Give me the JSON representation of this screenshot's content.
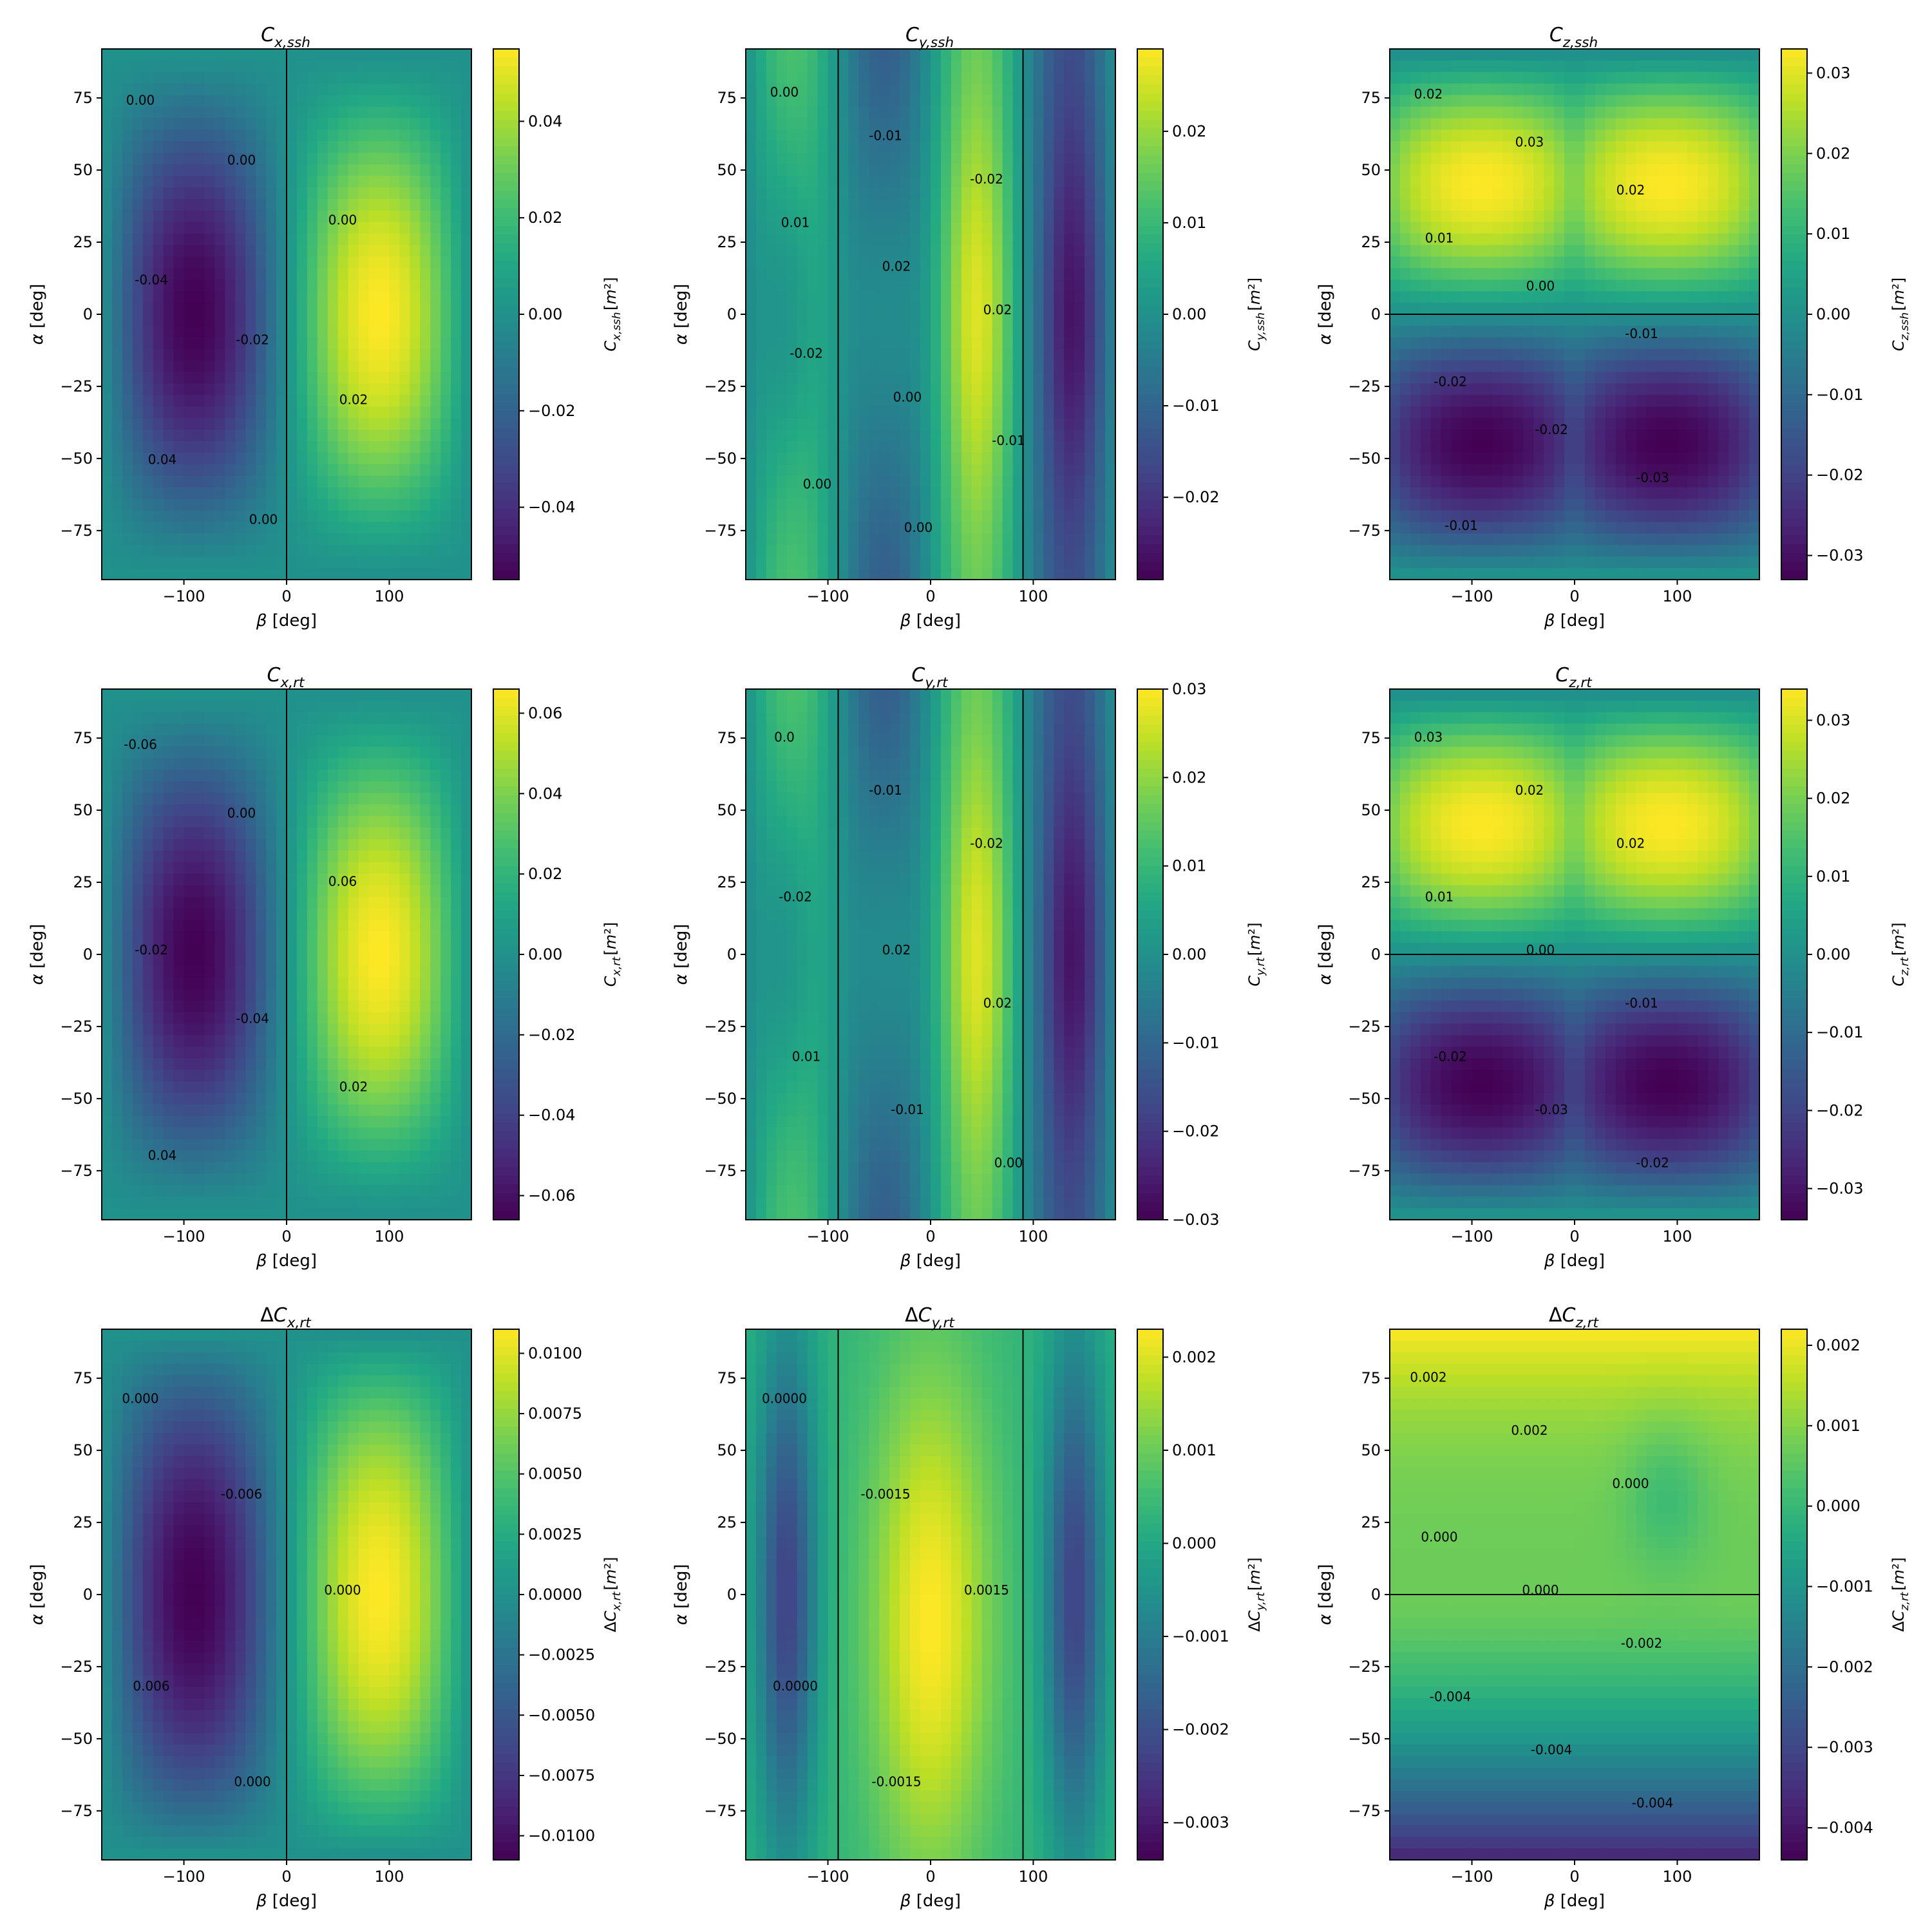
{
  "chart_data": [
    {
      "type": "heatmap",
      "title": "C_{x,ssh}",
      "xlabel": "β [deg]",
      "ylabel": "α [deg]",
      "colorbar_label": "C_{x,ssh}[m²]",
      "xlim": [
        -180,
        180
      ],
      "ylim": [
        -92,
        92
      ],
      "xticks": [
        "-100",
        "0",
        "100"
      ],
      "yticks": [
        "75",
        "50",
        "25",
        "0",
        "-25",
        "-50",
        "-75"
      ],
      "clim": [
        -0.055,
        0.055
      ],
      "colorbar_ticks": [
        "0.04",
        "0.02",
        "0.00",
        "-0.02",
        "-0.04"
      ],
      "pattern": "sin_beta_x",
      "contour_labels": [
        "0.00",
        "0.00",
        "0.00",
        "-0.04",
        "-0.02",
        "0.02",
        "0.04",
        "0.00"
      ]
    },
    {
      "type": "heatmap",
      "title": "C_{y,ssh}",
      "xlabel": "β [deg]",
      "ylabel": "α [deg]",
      "colorbar_label": "C_{y,ssh}[m²]",
      "xlim": [
        -180,
        180
      ],
      "ylim": [
        -92,
        92
      ],
      "xticks": [
        "-100",
        "0",
        "100"
      ],
      "yticks": [
        "75",
        "50",
        "25",
        "0",
        "-25",
        "-50",
        "-75"
      ],
      "clim": [
        -0.029,
        0.029
      ],
      "colorbar_ticks": [
        "0.02",
        "0.01",
        "0.00",
        "-0.01",
        "-0.02"
      ],
      "pattern": "sin_2beta_y",
      "contour_labels": [
        "0.00",
        "-0.01",
        "-0.02",
        "0.01",
        "0.02",
        "0.02",
        "-0.02",
        "0.00",
        "-0.01",
        "0.00",
        "0.00"
      ]
    },
    {
      "type": "heatmap",
      "title": "C_{z,ssh}",
      "xlabel": "β [deg]",
      "ylabel": "α [deg]",
      "colorbar_label": "C_{z,ssh}[m²]",
      "xlim": [
        -180,
        180
      ],
      "ylim": [
        -92,
        92
      ],
      "xticks": [
        "-100",
        "0",
        "100"
      ],
      "yticks": [
        "75",
        "50",
        "25",
        "0",
        "-25",
        "-50",
        "-75"
      ],
      "clim": [
        -0.033,
        0.033
      ],
      "colorbar_ticks": [
        "0.03",
        "0.02",
        "0.01",
        "0.00",
        "-0.01",
        "-0.02",
        "-0.03"
      ],
      "pattern": "sin_2alpha_z",
      "contour_labels": [
        "0.02",
        "0.03",
        "0.02",
        "0.01",
        "0.00",
        "-0.01",
        "-0.02",
        "-0.02",
        "-0.03",
        "-0.01"
      ]
    },
    {
      "type": "heatmap",
      "title": "C_{x,rt}",
      "xlabel": "β [deg]",
      "ylabel": "α [deg]",
      "colorbar_label": "C_{x,rt}[m²]",
      "xlim": [
        -180,
        180
      ],
      "ylim": [
        -92,
        92
      ],
      "xticks": [
        "-100",
        "0",
        "100"
      ],
      "yticks": [
        "75",
        "50",
        "25",
        "0",
        "-25",
        "-50",
        "-75"
      ],
      "clim": [
        -0.066,
        0.066
      ],
      "colorbar_ticks": [
        "0.06",
        "0.04",
        "0.02",
        "0.00",
        "-0.02",
        "-0.04",
        "-0.06"
      ],
      "pattern": "sin_beta_x",
      "contour_labels": [
        "-0.06",
        "0.00",
        "0.06",
        "-0.02",
        "-0.04",
        "0.02",
        "0.04"
      ]
    },
    {
      "type": "heatmap",
      "title": "C_{y,rt}",
      "xlabel": "β [deg]",
      "ylabel": "α [deg]",
      "colorbar_label": "C_{y,rt}[m²]",
      "xlim": [
        -180,
        180
      ],
      "ylim": [
        -92,
        92
      ],
      "xticks": [
        "-100",
        "0",
        "100"
      ],
      "yticks": [
        "75",
        "50",
        "25",
        "0",
        "-25",
        "-50",
        "-75"
      ],
      "clim": [
        -0.03,
        0.03
      ],
      "colorbar_ticks": [
        "0.03",
        "0.02",
        "0.01",
        "0.00",
        "-0.01",
        "-0.02",
        "-0.03"
      ],
      "pattern": "sin_2beta_y",
      "contour_labels": [
        "0.0",
        "-0.01",
        "-0.02",
        "-0.02",
        "0.02",
        "0.02",
        "0.01",
        "-0.01",
        "0.00"
      ]
    },
    {
      "type": "heatmap",
      "title": "C_{z,rt}",
      "xlabel": "β [deg]",
      "ylabel": "α [deg]",
      "colorbar_label": "C_{z,rt}[m²]",
      "xlim": [
        -180,
        180
      ],
      "ylim": [
        -92,
        92
      ],
      "xticks": [
        "-100",
        "0",
        "100"
      ],
      "yticks": [
        "75",
        "50",
        "25",
        "0",
        "-25",
        "-50",
        "-75"
      ],
      "clim": [
        -0.034,
        0.034
      ],
      "colorbar_ticks": [
        "0.03",
        "0.02",
        "0.01",
        "0.00",
        "-0.01",
        "-0.02",
        "-0.03"
      ],
      "pattern": "sin_2alpha_z",
      "contour_labels": [
        "0.03",
        "0.02",
        "0.02",
        "0.01",
        "0.00",
        "-0.01",
        "-0.02",
        "-0.03",
        "-0.02"
      ]
    },
    {
      "type": "heatmap",
      "title": "ΔC_{x,rt}",
      "xlabel": "β [deg]",
      "ylabel": "α [deg]",
      "colorbar_label": "ΔC_{x,rt}[m²]",
      "xlim": [
        -180,
        180
      ],
      "ylim": [
        -92,
        92
      ],
      "xticks": [
        "-100",
        "0",
        "100"
      ],
      "yticks": [
        "75",
        "50",
        "25",
        "0",
        "-25",
        "-50",
        "-75"
      ],
      "clim": [
        -0.011,
        0.011
      ],
      "colorbar_ticks": [
        "0.0100",
        "0.0075",
        "0.0050",
        "0.0025",
        "0.0000",
        "-0.0025",
        "-0.0050",
        "-0.0075",
        "-0.0100"
      ],
      "pattern": "delta_x",
      "contour_labels": [
        "0.000",
        "-0.006",
        "0.000",
        "0.006",
        "0.000"
      ]
    },
    {
      "type": "heatmap",
      "title": "ΔC_{y,rt}",
      "xlabel": "β [deg]",
      "ylabel": "α [deg]",
      "colorbar_label": "ΔC_{y,rt}[m²]",
      "xlim": [
        -180,
        180
      ],
      "ylim": [
        -92,
        92
      ],
      "xticks": [
        "-100",
        "0",
        "100"
      ],
      "yticks": [
        "75",
        "50",
        "25",
        "0",
        "-25",
        "-50",
        "-75"
      ],
      "clim": [
        -0.0034,
        0.0023
      ],
      "colorbar_ticks": [
        "0.002",
        "0.001",
        "0.000",
        "-0.001",
        "-0.002",
        "-0.003"
      ],
      "pattern": "delta_y",
      "contour_labels": [
        "0.0000",
        "-0.0015",
        "0.0015",
        "0.0000",
        "-0.0015"
      ]
    },
    {
      "type": "heatmap",
      "title": "ΔC_{z,rt}",
      "xlabel": "β [deg]",
      "ylabel": "α [deg]",
      "colorbar_label": "ΔC_{z,rt}[m²]",
      "xlim": [
        -180,
        180
      ],
      "ylim": [
        -92,
        92
      ],
      "xticks": [
        "-100",
        "0",
        "100"
      ],
      "yticks": [
        "75",
        "50",
        "25",
        "0",
        "-25",
        "-50",
        "-75"
      ],
      "clim": [
        -0.0044,
        0.0022
      ],
      "colorbar_ticks": [
        "0.002",
        "0.001",
        "0.000",
        "-0.001",
        "-0.002",
        "-0.003",
        "-0.004"
      ],
      "pattern": "delta_z",
      "contour_labels": [
        "0.002",
        "0.002",
        "0.000",
        "0.000",
        "0.000",
        "-0.002",
        "-0.004",
        "-0.004",
        "-0.004"
      ]
    }
  ]
}
